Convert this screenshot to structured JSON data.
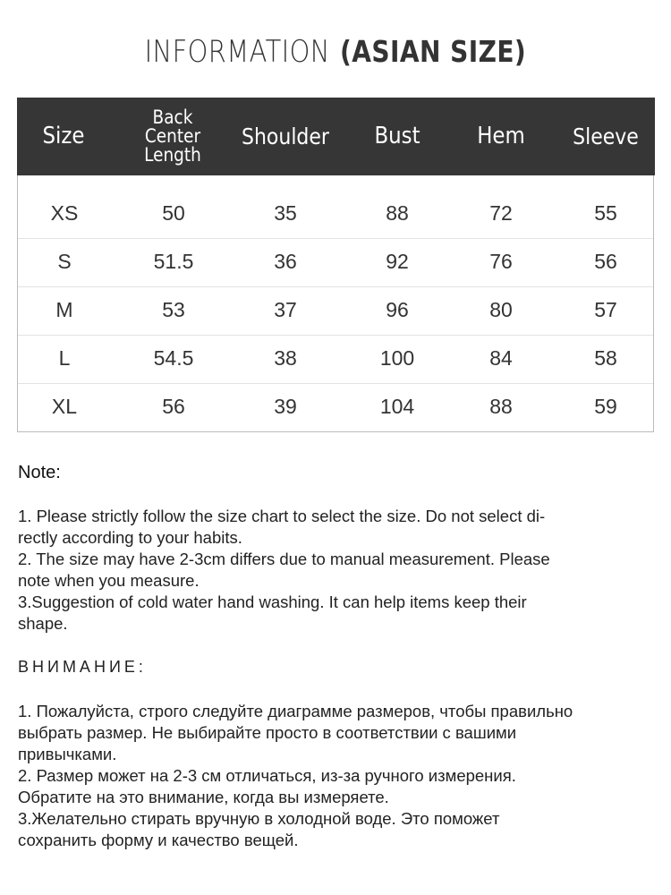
{
  "title": {
    "light": "INFORMATION",
    "bold": "(ASIAN SIZE)"
  },
  "table": {
    "headers": [
      "Size",
      "Back Center Length",
      "Shoulder",
      "Bust",
      "Hem",
      "Sleeve"
    ],
    "header_line1": "Back Center",
    "header_line2": "Length",
    "rows": [
      [
        "XS",
        "50",
        "35",
        "88",
        "72",
        "55"
      ],
      [
        "S",
        "51.5",
        "36",
        "92",
        "76",
        "56"
      ],
      [
        "M",
        "53",
        "37",
        "96",
        "80",
        "57"
      ],
      [
        "L",
        "54.5",
        "38",
        "100",
        "84",
        "58"
      ],
      [
        "XL",
        "56",
        "39",
        "104",
        "88",
        "59"
      ]
    ],
    "header_bg": "#363636"
  },
  "note": {
    "heading": "Note:",
    "lines": [
      "1. Please strictly follow the size chart  to select the size. Do not select di-",
      "rectly according to your habits.",
      "2. The size may have 2-3cm differs due to manual measurement. Please",
      "note when you measure.",
      "3.Suggestion of cold water hand washing. It can help items keep their",
      "shape."
    ]
  },
  "russian": {
    "heading": "ВНИМАНИЕ:",
    "lines": [
      "1. Пожалуйста, строго следуйте диаграмме размеров, чтобы правильно",
      "выбрать размер. Не выбирайте просто в соответствии с вашими",
      "привычками.",
      "2. Размер может на 2-3 см отличаться, из-за ручного измерения.",
      "Обратите на это внимание, когда вы измеряете.",
      "3.Желательно стирать вручную в холодной воде. Это поможет",
      "сохранить форму и качество вещей."
    ]
  }
}
